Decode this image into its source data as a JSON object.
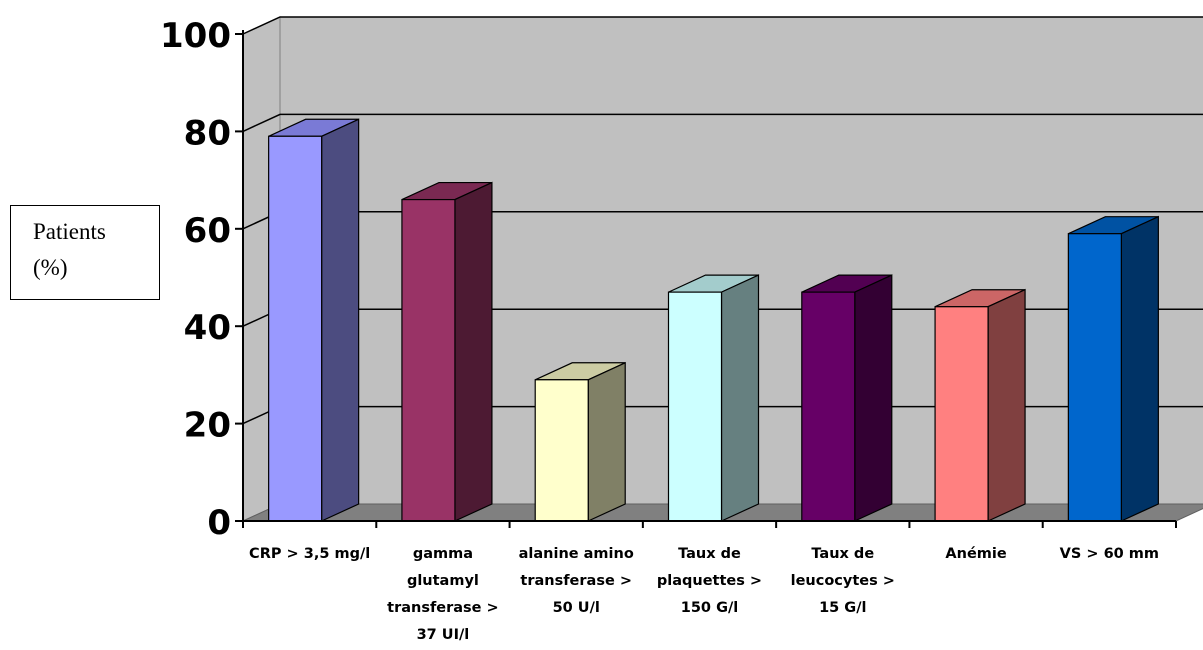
{
  "chart_data": {
    "type": "bar",
    "title": "",
    "xlabel": "",
    "ylabel_lines": [
      "Patients",
      "(%)"
    ],
    "ylim": [
      0,
      100
    ],
    "yticks": [
      0,
      20,
      40,
      60,
      80,
      100
    ],
    "grid": true,
    "categories": [
      [
        "CRP > 3,5 mg/l"
      ],
      [
        "gamma",
        "glutamyl",
        "transferase >",
        "37 UI/l"
      ],
      [
        "alanine amino",
        "transferase >",
        "50 U/l"
      ],
      [
        "Taux de",
        "plaquettes >",
        "150 G/l"
      ],
      [
        "Taux de",
        "leucocytes >",
        "15 G/l"
      ],
      [
        "Anémie"
      ],
      [
        "VS > 60 mm"
      ]
    ],
    "values": [
      79,
      66,
      29,
      47,
      47,
      44,
      59
    ],
    "colors": [
      {
        "front": "#9999FF",
        "side": "#4C4C80",
        "top": "#7A7AD6"
      },
      {
        "front": "#993366",
        "side": "#4D1A33",
        "top": "#7A2952"
      },
      {
        "front": "#FFFFCC",
        "side": "#808066",
        "top": "#CCCCA3"
      },
      {
        "front": "#CCFFFF",
        "side": "#668080",
        "top": "#A3CCCC"
      },
      {
        "front": "#660066",
        "side": "#330033",
        "top": "#520052"
      },
      {
        "front": "#FF8080",
        "side": "#804040",
        "top": "#CC6666"
      },
      {
        "front": "#0066CC",
        "side": "#003366",
        "top": "#0052A3"
      }
    ]
  }
}
